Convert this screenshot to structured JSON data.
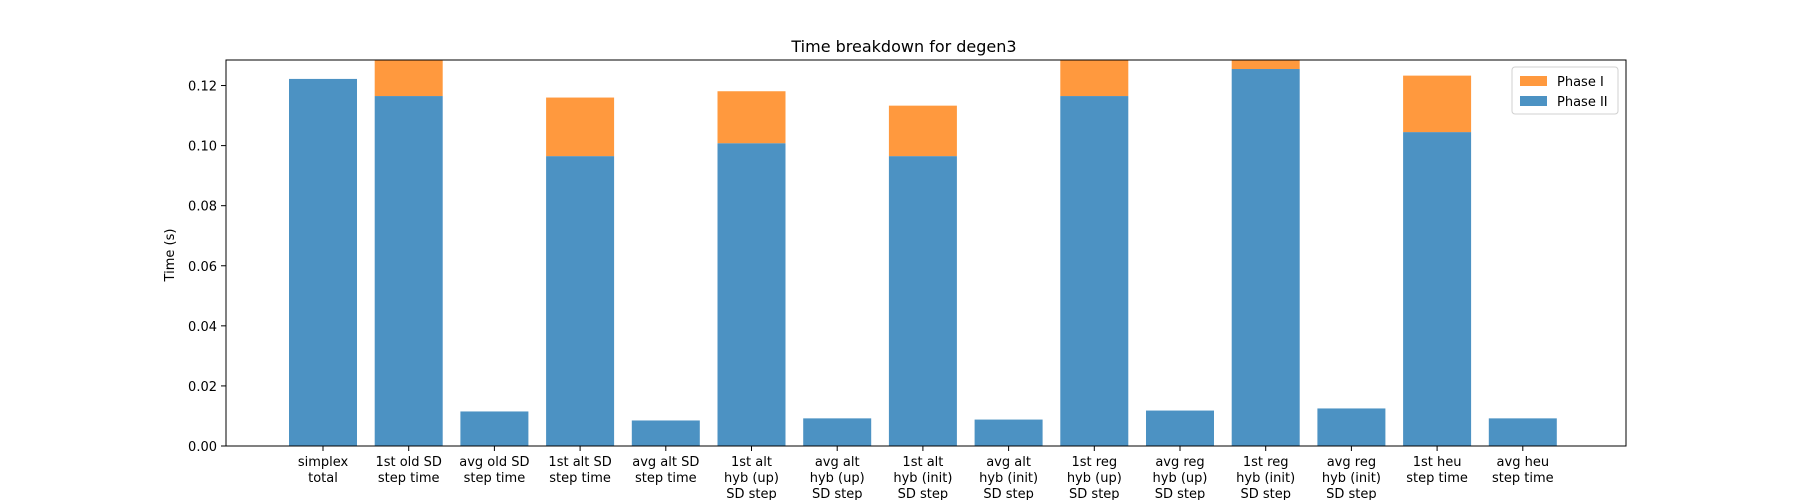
{
  "chart_data": {
    "type": "bar",
    "stacked": true,
    "title": "Time breakdown for degen3",
    "xlabel": "",
    "ylabel": "Time (s)",
    "ylim": [
      0,
      0.1285
    ],
    "yticks": [
      "0.00",
      "0.02",
      "0.04",
      "0.06",
      "0.08",
      "0.10",
      "0.12"
    ],
    "grid": false,
    "legend_position": "top-right",
    "categories": [
      [
        "simplex",
        "total"
      ],
      [
        "1st old SD",
        "step time"
      ],
      [
        "avg old SD",
        "step time"
      ],
      [
        "1st alt SD",
        "step time"
      ],
      [
        "avg alt SD",
        "step time"
      ],
      [
        "1st alt",
        "hyb (up)",
        "SD step"
      ],
      [
        "avg alt",
        "hyb (up)",
        "SD step"
      ],
      [
        "1st alt",
        "hyb (init)",
        "SD step"
      ],
      [
        "avg alt",
        "hyb (init)",
        "SD step"
      ],
      [
        "1st reg",
        "hyb (up)",
        "SD step"
      ],
      [
        "avg reg",
        "hyb (up)",
        "SD step"
      ],
      [
        "1st reg",
        "hyb (init)",
        "SD step"
      ],
      [
        "avg reg",
        "hyb (init)",
        "SD step"
      ],
      [
        "1st heu",
        "step time"
      ],
      [
        "avg heu",
        "step time"
      ]
    ],
    "series": [
      {
        "name": "Phase II",
        "color": "#4c92c3",
        "values": [
          0.1222,
          0.1165,
          0.0115,
          0.0965,
          0.0085,
          0.1008,
          0.0092,
          0.0965,
          0.0088,
          0.1165,
          0.0118,
          0.1255,
          0.0125,
          0.1045,
          0.0092
        ]
      },
      {
        "name": "Phase I",
        "color": "#ff993e",
        "values": [
          0.0,
          0.012,
          0.0,
          0.0195,
          0.0,
          0.0173,
          0.0,
          0.0168,
          0.0,
          0.012,
          0.0,
          0.003,
          0.0,
          0.0188,
          0.0
        ]
      }
    ],
    "legend_order": [
      "Phase I",
      "Phase II"
    ]
  }
}
